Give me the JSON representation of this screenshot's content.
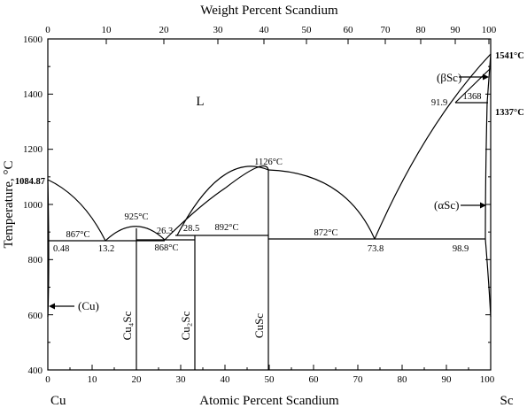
{
  "diagram": {
    "top_axis_title": "Weight Percent Scandium",
    "bottom_axis_title": "Atomic Percent Scandium",
    "y_axis_title": "Temperature, °C",
    "element_left": "Cu",
    "element_right": "Sc",
    "top_ticks": [
      "0",
      "10",
      "20",
      "30",
      "40",
      "50",
      "60",
      "70",
      "80",
      "90",
      "100"
    ],
    "bottom_ticks": [
      "0",
      "10",
      "20",
      "30",
      "40",
      "50",
      "60",
      "70",
      "80",
      "90",
      "100"
    ],
    "y_ticks": [
      "400",
      "600",
      "800",
      "1000",
      "1200",
      "1400",
      "1600"
    ],
    "phases": {
      "liquid": "L",
      "beta_sc": "(βSc)",
      "alpha_sc": "(αSc)",
      "cu": "(Cu)",
      "cu4sc": "Cu4Sc",
      "cu2sc": "Cu2Sc",
      "cusc": "CuSc"
    },
    "temperature_labels": {
      "sc_melting": "1541°C",
      "sc_transition": "1337°C",
      "cu_melting": "1084.87",
      "cusc_max": "1126°C",
      "cu4sc_max": "925°C",
      "eutectic_867": "867°C",
      "eutectic_868": "868°C",
      "peritectic_892": "892°C",
      "eutectic_872": "872°C",
      "sc_1368": "1368"
    },
    "composition_labels": {
      "cu_solvus": "0.48",
      "eut1": "13.2",
      "eut2_left": "26.3",
      "eut2_right": "28.5",
      "eut3": "73.8",
      "sc_side": "98.9",
      "beta_sc": "91.9"
    }
  }
}
